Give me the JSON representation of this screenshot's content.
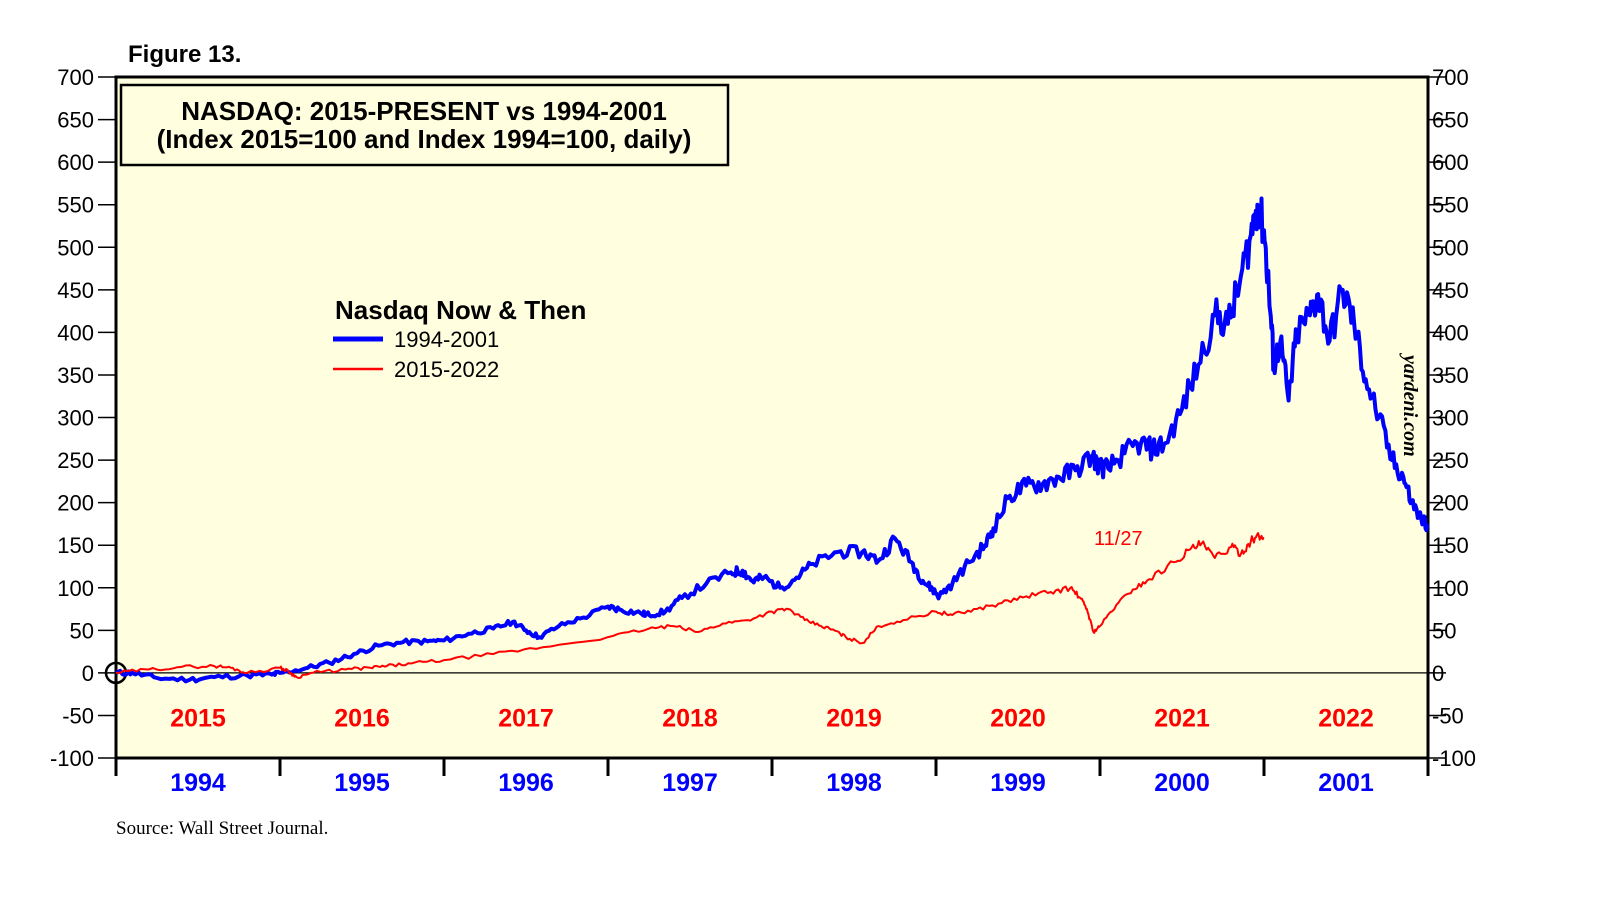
{
  "figure_label": "Figure 13.",
  "source": "Source: Wall Street Journal.",
  "watermark": "yardeni.com",
  "colors": {
    "plot_bg": "#ffffe0",
    "series_1994": "#0000ff",
    "series_2015": "#ff0000",
    "axis": "#000000"
  },
  "chart_data": {
    "type": "line",
    "title_line1": "NASDAQ: 2015-PRESENT vs 1994-2001",
    "title_line2": "(Index 2015=100 and Index 1994=100, daily)",
    "legend_title": "Nasdaq Now & Then",
    "ylim": [
      -100,
      700
    ],
    "yticks": [
      "700",
      "650",
      "600",
      "550",
      "500",
      "450",
      "400",
      "350",
      "300",
      "250",
      "200",
      "150",
      "100",
      "50",
      "0",
      "-50",
      "-100"
    ],
    "ytick_values": [
      700,
      650,
      600,
      550,
      500,
      450,
      400,
      350,
      300,
      250,
      200,
      150,
      100,
      50,
      0,
      -50,
      -100
    ],
    "x_range_years": [
      0,
      8
    ],
    "top_year_labels": [
      "2015",
      "2016",
      "2017",
      "2018",
      "2019",
      "2020",
      "2021",
      "2022"
    ],
    "bottom_year_labels": [
      "1994",
      "1995",
      "1996",
      "1997",
      "1998",
      "1999",
      "2000",
      "2001"
    ],
    "end_label": "11/27",
    "series": [
      {
        "name": "1994-2001",
        "points": [
          [
            0,
            0
          ],
          [
            0.1,
            0
          ],
          [
            0.25,
            -6
          ],
          [
            0.45,
            -8
          ],
          [
            0.6,
            -5
          ],
          [
            0.8,
            -3
          ],
          [
            0.95,
            -2
          ],
          [
            1.0,
            0
          ],
          [
            1.15,
            5
          ],
          [
            1.3,
            12
          ],
          [
            1.45,
            22
          ],
          [
            1.6,
            32
          ],
          [
            1.75,
            36
          ],
          [
            1.9,
            37
          ],
          [
            2.0,
            38
          ],
          [
            2.15,
            46
          ],
          [
            2.3,
            52
          ],
          [
            2.42,
            60
          ],
          [
            2.5,
            50
          ],
          [
            2.58,
            42
          ],
          [
            2.7,
            55
          ],
          [
            2.85,
            65
          ],
          [
            3.0,
            78
          ],
          [
            3.08,
            74
          ],
          [
            3.2,
            70
          ],
          [
            3.25,
            68
          ],
          [
            3.35,
            72
          ],
          [
            3.45,
            88
          ],
          [
            3.6,
            105
          ],
          [
            3.75,
            118
          ],
          [
            3.82,
            120
          ],
          [
            3.88,
            108
          ],
          [
            3.95,
            112
          ],
          [
            4.05,
            100
          ],
          [
            4.15,
            112
          ],
          [
            4.25,
            128
          ],
          [
            4.4,
            142
          ],
          [
            4.55,
            142
          ],
          [
            4.65,
            132
          ],
          [
            4.75,
            158
          ],
          [
            4.85,
            130
          ],
          [
            4.92,
            108
          ],
          [
            4.98,
            98
          ],
          [
            5.02,
            90
          ],
          [
            5.1,
            105
          ],
          [
            5.2,
            130
          ],
          [
            5.3,
            150
          ],
          [
            5.35,
            170
          ],
          [
            5.45,
            208
          ],
          [
            5.55,
            220
          ],
          [
            5.65,
            222
          ],
          [
            5.75,
            230
          ],
          [
            5.85,
            238
          ],
          [
            5.95,
            255
          ],
          [
            6.0,
            242
          ],
          [
            6.05,
            240
          ],
          [
            6.15,
            258
          ],
          [
            6.25,
            270
          ],
          [
            6.32,
            262
          ],
          [
            6.4,
            270
          ],
          [
            6.5,
            310
          ],
          [
            6.6,
            362
          ],
          [
            6.7,
            420
          ],
          [
            6.78,
            410
          ],
          [
            6.85,
            455
          ],
          [
            6.92,
            515
          ],
          [
            6.96,
            550
          ],
          [
            7.0,
            520
          ],
          [
            7.03,
            450
          ],
          [
            7.06,
            360
          ],
          [
            7.1,
            390
          ],
          [
            7.15,
            320
          ],
          [
            7.2,
            400
          ],
          [
            7.28,
            420
          ],
          [
            7.33,
            445
          ],
          [
            7.4,
            390
          ],
          [
            7.48,
            450
          ],
          [
            7.55,
            410
          ],
          [
            7.62,
            345
          ],
          [
            7.7,
            300
          ],
          [
            7.78,
            250
          ],
          [
            7.85,
            230
          ],
          [
            7.9,
            200
          ],
          [
            7.96,
            180
          ],
          [
            8.0,
            175
          ]
        ]
      },
      {
        "name": "2015-2022",
        "points": [
          [
            0,
            0
          ],
          [
            0.2,
            4
          ],
          [
            0.4,
            7
          ],
          [
            0.6,
            8
          ],
          [
            0.7,
            6
          ],
          [
            0.8,
            0
          ],
          [
            1.0,
            6
          ],
          [
            1.05,
            2
          ],
          [
            1.1,
            -5
          ],
          [
            1.2,
            0
          ],
          [
            1.4,
            4
          ],
          [
            1.55,
            6
          ],
          [
            1.65,
            8
          ],
          [
            1.8,
            11
          ],
          [
            2.0,
            15
          ],
          [
            2.3,
            22
          ],
          [
            2.6,
            30
          ],
          [
            3.0,
            42
          ],
          [
            3.25,
            52
          ],
          [
            3.4,
            55
          ],
          [
            3.55,
            48
          ],
          [
            3.7,
            58
          ],
          [
            3.85,
            62
          ],
          [
            4.0,
            72
          ],
          [
            4.1,
            75
          ],
          [
            4.2,
            62
          ],
          [
            4.3,
            55
          ],
          [
            4.38,
            50
          ],
          [
            4.45,
            42
          ],
          [
            4.55,
            35
          ],
          [
            4.65,
            55
          ],
          [
            4.8,
            62
          ],
          [
            5.0,
            72
          ],
          [
            5.1,
            68
          ],
          [
            5.25,
            75
          ],
          [
            5.4,
            82
          ],
          [
            5.55,
            90
          ],
          [
            5.7,
            95
          ],
          [
            5.82,
            100
          ],
          [
            5.88,
            88
          ],
          [
            5.92,
            75
          ],
          [
            5.96,
            48
          ],
          [
            6.0,
            55
          ],
          [
            6.1,
            80
          ],
          [
            6.2,
            98
          ],
          [
            6.3,
            110
          ],
          [
            6.45,
            130
          ],
          [
            6.55,
            145
          ],
          [
            6.62,
            152
          ],
          [
            6.7,
            135
          ],
          [
            6.8,
            148
          ],
          [
            6.86,
            140
          ],
          [
            6.92,
            155
          ],
          [
            6.97,
            160
          ],
          [
            7.0,
            158
          ]
        ]
      }
    ],
    "legend": [
      {
        "label": "1994-2001",
        "series": 0
      },
      {
        "label": "2015-2022",
        "series": 1
      }
    ]
  }
}
